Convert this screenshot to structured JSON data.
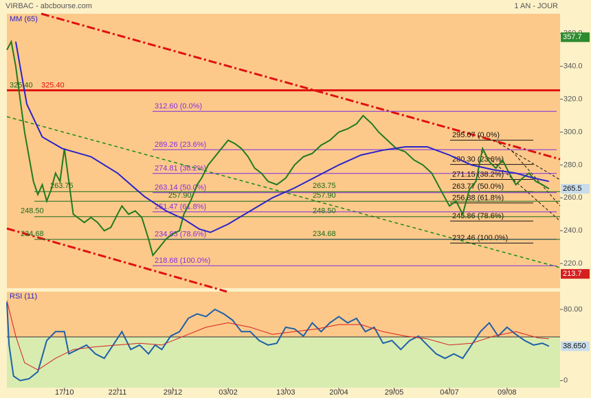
{
  "header": {
    "title": "VIRBAC - abcbourse.com",
    "period": "1 AN - JOUR"
  },
  "chart_data": [
    {
      "type": "line",
      "indicator_label": "MM (65)",
      "xlim": [
        0,
        250
      ],
      "xticks": [
        {
          "value": 26,
          "label": "17/10"
        },
        {
          "value": 50,
          "label": "22/11"
        },
        {
          "value": 75,
          "label": "29/12"
        },
        {
          "value": 100,
          "label": "03/02"
        },
        {
          "value": 126,
          "label": "13/03"
        },
        {
          "value": 150,
          "label": "20/04"
        },
        {
          "value": 175,
          "label": "29/05"
        },
        {
          "value": 200,
          "label": "04/07"
        },
        {
          "value": 226,
          "label": "09/08"
        }
      ],
      "ylim": [
        205,
        372
      ],
      "yticks": [
        {
          "value": 220,
          "label": "220.0"
        },
        {
          "value": 240,
          "label": "240.0"
        },
        {
          "value": 260,
          "label": "260.0"
        },
        {
          "value": 280,
          "label": "280.0"
        },
        {
          "value": 300,
          "label": "300.0"
        },
        {
          "value": 320,
          "label": "320.0"
        },
        {
          "value": 340,
          "label": "340.0"
        },
        {
          "value": 360,
          "label": "360.0"
        }
      ],
      "series": [
        {
          "color": "#1f7a1f",
          "x": [
            0,
            2,
            4,
            6,
            8,
            10,
            12,
            14,
            16,
            18,
            20,
            22,
            24,
            26,
            28,
            30,
            32,
            35,
            38,
            41,
            44,
            47,
            50,
            52,
            55,
            58,
            61,
            64,
            66,
            69,
            72,
            75,
            78,
            80,
            83,
            86,
            88,
            91,
            94,
            97,
            100,
            103,
            106,
            109,
            112,
            115,
            118,
            122,
            126,
            130,
            134,
            138,
            142,
            146,
            150,
            154,
            158,
            161,
            165,
            168,
            172,
            176,
            180,
            184,
            188,
            192,
            196,
            200,
            203,
            206,
            209,
            212,
            215,
            218,
            221,
            224,
            227,
            230,
            233,
            236,
            239,
            242,
            245
          ],
          "values": [
            350,
            355,
            340,
            320,
            300,
            285,
            270,
            262,
            268,
            258,
            265,
            275,
            270,
            290,
            270,
            250,
            248,
            245,
            248,
            245,
            240,
            242,
            250,
            255,
            250,
            252,
            248,
            235,
            225,
            230,
            235,
            238,
            240,
            250,
            258,
            268,
            272,
            280,
            285,
            290,
            295,
            293,
            290,
            285,
            278,
            275,
            270,
            268,
            272,
            280,
            285,
            287,
            292,
            295,
            300,
            302,
            305,
            310,
            305,
            300,
            295,
            290,
            288,
            283,
            280,
            275,
            265,
            255,
            258,
            250,
            265,
            270,
            290,
            282,
            278,
            283,
            275,
            268,
            272,
            275,
            270,
            268,
            265.5
          ]
        },
        {
          "name": "MM (65)",
          "color": "#2b22c8",
          "x": [
            4,
            9,
            16,
            25,
            38,
            50,
            62,
            72,
            80,
            87,
            92,
            100,
            110,
            120,
            130,
            140,
            150,
            160,
            170,
            180,
            190,
            200,
            210,
            220,
            230,
            238,
            245
          ],
          "values": [
            355,
            317,
            297,
            290,
            285,
            275,
            261,
            252,
            247,
            241,
            239,
            244,
            252,
            260,
            266,
            273,
            280,
            286,
            289,
            291,
            291,
            286,
            280,
            277,
            275,
            272,
            270
          ]
        }
      ],
      "levels": [
        {
          "value": 325.4,
          "label": "325.40",
          "color": "#e01010"
        }
      ],
      "fib_left": [
        {
          "value": 312.6,
          "label": "312.60 (0.0%)"
        },
        {
          "value": 289.26,
          "label": "289.26 (23.6%)"
        },
        {
          "value": 274.81,
          "label": "274.81 (38.2%)"
        },
        {
          "value": 263.14,
          "label": "263.14 (50.0%)"
        },
        {
          "value": 251.47,
          "label": "251.47 (61.8%)"
        },
        {
          "value": 234.85,
          "label": "234.85 (78.6%)"
        },
        {
          "value": 218.68,
          "label": "218.68 (100.0%)"
        }
      ],
      "fib_right": [
        {
          "value": 295.07,
          "label": "295.07 (0.0%)"
        },
        {
          "value": 280.3,
          "label": "280.30 (23.6%)"
        },
        {
          "value": 271.15,
          "label": "271.15 (38.2%)"
        },
        {
          "value": 263.77,
          "label": "263.77 (50.0%)"
        },
        {
          "value": 256.88,
          "label": "256.88 (61.8%)"
        },
        {
          "value": 245.86,
          "label": "245.86 (78.6%)"
        },
        {
          "value": 232.46,
          "label": "232.46 (100.0%)"
        }
      ],
      "supports": [
        263.75,
        {
          "value": 257.9,
          "label": "257.90"
        },
        {
          "value": 248.5,
          "label": "248.50"
        },
        234.68
      ],
      "price_tags": [
        {
          "value": 357.7,
          "color": "#2e8b2e"
        },
        {
          "value": 265.5,
          "color": "#c8dcec"
        },
        {
          "value": 213.7,
          "color": "#d42020"
        }
      ]
    },
    {
      "type": "line",
      "indicator_label": "RSI (11)",
      "xlim": [
        0,
        250
      ],
      "ylim": [
        -8,
        100
      ],
      "yticks": [
        0,
        {
          "value": 80,
          "label": "80.00"
        }
      ],
      "series": [
        {
          "color": "#1f5fa8",
          "x": [
            0,
            1,
            3,
            6,
            10,
            14,
            18,
            22,
            26,
            28,
            32,
            36,
            40,
            44,
            48,
            52,
            56,
            60,
            64,
            67,
            70,
            74,
            78,
            82,
            86,
            90,
            94,
            98,
            102,
            106,
            110,
            114,
            118,
            122,
            126,
            130,
            134,
            138,
            142,
            146,
            150,
            154,
            158,
            162,
            166,
            170,
            174,
            178,
            182,
            186,
            190,
            194,
            198,
            202,
            206,
            210,
            214,
            218,
            222,
            226,
            230,
            234,
            238,
            242,
            245
          ],
          "values": [
            88,
            40,
            5,
            0,
            2,
            10,
            45,
            55,
            55,
            30,
            35,
            40,
            30,
            25,
            40,
            55,
            35,
            40,
            30,
            40,
            35,
            50,
            55,
            70,
            75,
            72,
            80,
            75,
            68,
            55,
            55,
            45,
            40,
            42,
            60,
            58,
            50,
            65,
            55,
            65,
            72,
            65,
            70,
            55,
            60,
            42,
            45,
            35,
            45,
            50,
            40,
            30,
            25,
            30,
            25,
            40,
            55,
            65,
            50,
            60,
            52,
            45,
            40,
            42,
            38.65
          ]
        },
        {
          "color": "#d42020",
          "x": [
            0,
            4,
            8,
            14,
            22,
            30,
            40,
            50,
            60,
            70,
            80,
            90,
            100,
            110,
            120,
            130,
            140,
            150,
            160,
            170,
            180,
            190,
            200,
            210,
            220,
            230,
            240,
            245
          ],
          "values": [
            90,
            50,
            20,
            12,
            25,
            35,
            38,
            40,
            42,
            40,
            50,
            60,
            65,
            60,
            52,
            55,
            58,
            63,
            63,
            55,
            50,
            47,
            40,
            42,
            50,
            55,
            48,
            47
          ]
        }
      ],
      "price_tags": [
        {
          "value": 38.65,
          "label": "38.650",
          "color": "#c8dcec"
        }
      ]
    }
  ]
}
